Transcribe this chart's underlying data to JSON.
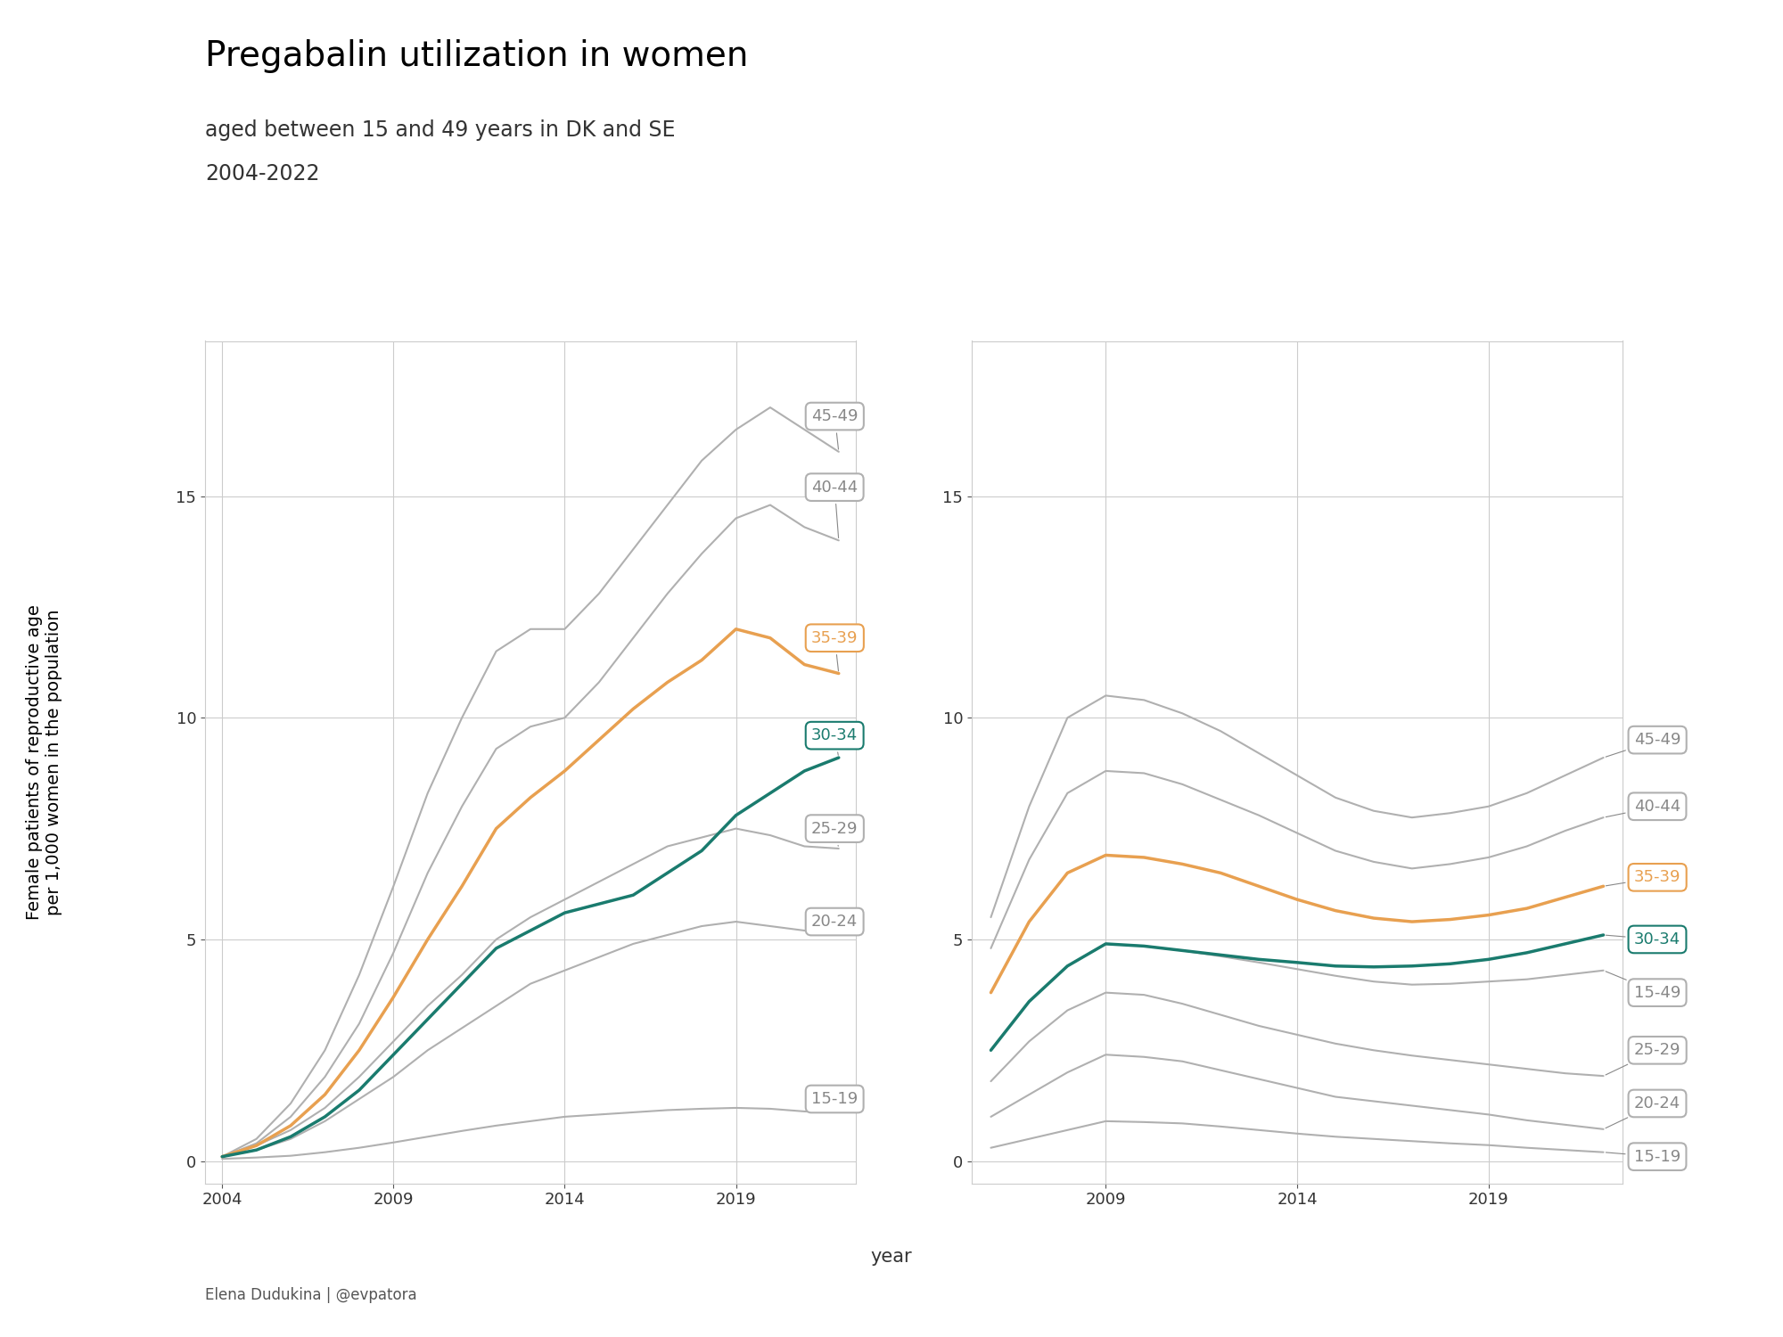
{
  "title_main": "Pregabalin utilization in women",
  "title_sub1": "aged between 15 and 49 years in DK and SE",
  "title_sub2": "2004-2022",
  "ylabel": "Female patients of reproductive age\nper 1,000 women in the population",
  "xlabel": "year",
  "footer": "Elena Dudukina | @evpatora",
  "panel_header_color": "#a9a9a9",
  "panel_bg": "#ffffff",
  "grid_color": "#cccccc",
  "years_dk": [
    2004,
    2005,
    2006,
    2007,
    2008,
    2009,
    2010,
    2011,
    2012,
    2013,
    2014,
    2015,
    2016,
    2017,
    2018,
    2019,
    2020,
    2021,
    2022
  ],
  "years_se": [
    2006,
    2007,
    2008,
    2009,
    2010,
    2011,
    2012,
    2013,
    2014,
    2015,
    2016,
    2017,
    2018,
    2019,
    2020,
    2021,
    2022
  ],
  "denmark": {
    "15-19": [
      0.05,
      0.08,
      0.12,
      0.2,
      0.3,
      0.42,
      0.55,
      0.68,
      0.8,
      0.9,
      1.0,
      1.05,
      1.1,
      1.15,
      1.18,
      1.2,
      1.18,
      1.12,
      1.1
    ],
    "20-24": [
      0.1,
      0.25,
      0.5,
      0.9,
      1.4,
      1.9,
      2.5,
      3.0,
      3.5,
      4.0,
      4.3,
      4.6,
      4.9,
      5.1,
      5.3,
      5.4,
      5.3,
      5.2,
      5.15
    ],
    "25-29": [
      0.1,
      0.35,
      0.7,
      1.2,
      1.9,
      2.7,
      3.5,
      4.2,
      5.0,
      5.5,
      5.9,
      6.3,
      6.7,
      7.1,
      7.3,
      7.5,
      7.35,
      7.1,
      7.05
    ],
    "30-34": [
      0.1,
      0.25,
      0.55,
      1.0,
      1.6,
      2.4,
      3.2,
      4.0,
      4.8,
      5.2,
      5.6,
      5.8,
      6.0,
      6.5,
      7.0,
      7.8,
      8.3,
      8.8,
      9.1
    ],
    "35-39": [
      0.1,
      0.35,
      0.8,
      1.5,
      2.5,
      3.7,
      5.0,
      6.2,
      7.5,
      8.2,
      8.8,
      9.5,
      10.2,
      10.8,
      11.3,
      12.0,
      11.8,
      11.2,
      11.0
    ],
    "40-44": [
      0.1,
      0.4,
      1.0,
      1.9,
      3.1,
      4.7,
      6.5,
      8.0,
      9.3,
      9.8,
      10.0,
      10.8,
      11.8,
      12.8,
      13.7,
      14.5,
      14.8,
      14.3,
      14.0
    ],
    "45-49": [
      0.1,
      0.5,
      1.3,
      2.5,
      4.2,
      6.2,
      8.3,
      10.0,
      11.5,
      12.0,
      12.0,
      12.8,
      13.8,
      14.8,
      15.8,
      16.5,
      17.0,
      16.5,
      16.0
    ]
  },
  "sweden": {
    "15-19": [
      0.3,
      0.5,
      0.7,
      0.9,
      0.88,
      0.85,
      0.78,
      0.7,
      0.62,
      0.55,
      0.5,
      0.45,
      0.4,
      0.36,
      0.3,
      0.25,
      0.2
    ],
    "20-24": [
      1.0,
      1.5,
      2.0,
      2.4,
      2.35,
      2.25,
      2.05,
      1.85,
      1.65,
      1.45,
      1.35,
      1.25,
      1.15,
      1.05,
      0.92,
      0.82,
      0.72
    ],
    "25-29": [
      1.8,
      2.7,
      3.4,
      3.8,
      3.75,
      3.55,
      3.3,
      3.05,
      2.85,
      2.65,
      2.5,
      2.38,
      2.28,
      2.18,
      2.08,
      1.98,
      1.92
    ],
    "30-34": [
      2.5,
      3.6,
      4.4,
      4.9,
      4.85,
      4.75,
      4.65,
      4.55,
      4.48,
      4.4,
      4.38,
      4.4,
      4.45,
      4.55,
      4.7,
      4.9,
      5.1
    ],
    "35-39": [
      3.8,
      5.4,
      6.5,
      6.9,
      6.85,
      6.7,
      6.5,
      6.2,
      5.9,
      5.65,
      5.48,
      5.4,
      5.45,
      5.55,
      5.7,
      5.95,
      6.2
    ],
    "40-44": [
      4.8,
      6.8,
      8.3,
      8.8,
      8.75,
      8.5,
      8.15,
      7.8,
      7.4,
      7.0,
      6.75,
      6.6,
      6.7,
      6.85,
      7.1,
      7.45,
      7.75
    ],
    "45-49": [
      5.5,
      8.0,
      10.0,
      10.5,
      10.4,
      10.1,
      9.7,
      9.2,
      8.7,
      8.2,
      7.9,
      7.75,
      7.85,
      8.0,
      8.3,
      8.7,
      9.1
    ],
    "15-49": [
      2.5,
      3.6,
      4.4,
      4.9,
      4.85,
      4.75,
      4.62,
      4.48,
      4.33,
      4.18,
      4.05,
      3.98,
      4.0,
      4.05,
      4.1,
      4.2,
      4.3
    ]
  },
  "colors": {
    "15-19": "#b0b0b0",
    "20-24": "#b0b0b0",
    "25-29": "#b0b0b0",
    "30-34": "#1a7b6e",
    "35-39": "#e8a050",
    "40-44": "#b0b0b0",
    "45-49": "#b0b0b0",
    "15-49": "#b0b0b0"
  },
  "linewidths": {
    "15-19": 1.5,
    "20-24": 1.5,
    "25-29": 1.5,
    "30-34": 2.5,
    "35-39": 2.5,
    "40-44": 1.5,
    "45-49": 1.5,
    "15-49": 1.5
  },
  "ylim": [
    -0.5,
    18.5
  ],
  "xlim_dk": [
    2003.5,
    2022.5
  ],
  "xlim_se": [
    2005.5,
    2022.5
  ],
  "yticks": [
    0,
    5,
    10,
    15
  ]
}
